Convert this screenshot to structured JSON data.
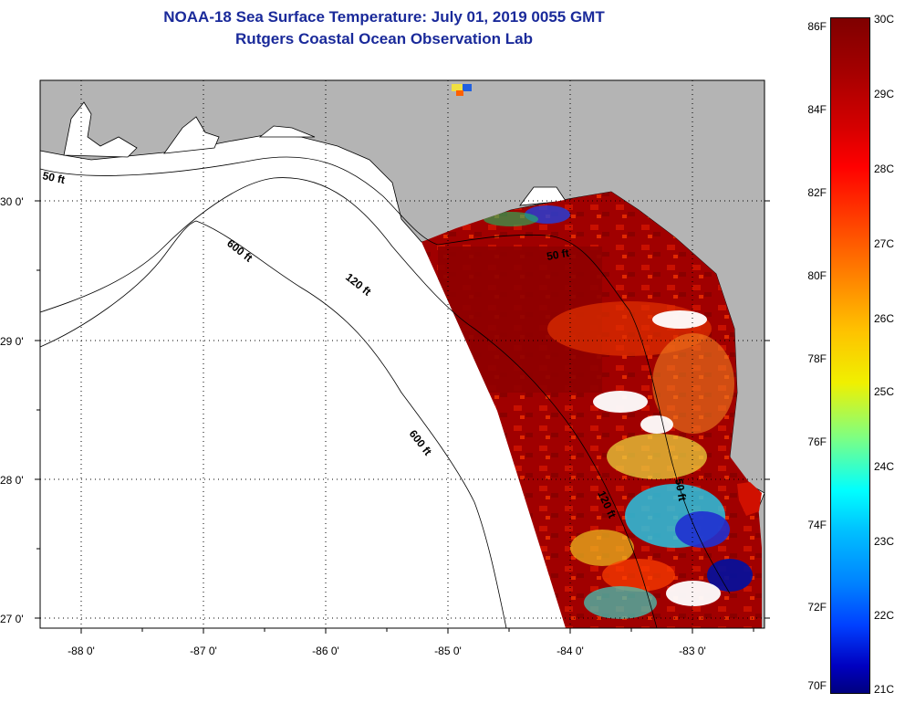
{
  "title": {
    "line1": "NOAA-18 Sea Surface Temperature:  July 01, 2019 0055 GMT",
    "line2": "Rutgers Coastal Ocean Observation Lab"
  },
  "map": {
    "lat_ticks": [
      "30 0'",
      "29 0'",
      "28 0'",
      "27 0'"
    ],
    "lon_ticks": [
      "-88 0'",
      "-87 0'",
      "-86 0'",
      "-85 0'",
      "-84 0'",
      "-83 0'"
    ],
    "contour_labels": [
      "50 ft",
      "600 ft",
      "120 ft",
      "600 ft",
      "50 ft",
      "120 ft",
      "50 ft"
    ],
    "colors": {
      "land": "#b4b4b4",
      "ocean_nodata": "#ffffff"
    }
  },
  "colorbar": {
    "fahrenheit": [
      "86F",
      "84F",
      "82F",
      "80F",
      "78F",
      "76F",
      "74F",
      "72F",
      "70F"
    ],
    "celsius": [
      "30C",
      "29C",
      "28C",
      "27C",
      "26C",
      "25C",
      "24C",
      "23C",
      "22C",
      "21C"
    ],
    "range_f": [
      70,
      86
    ],
    "range_c": [
      21,
      30
    ]
  }
}
